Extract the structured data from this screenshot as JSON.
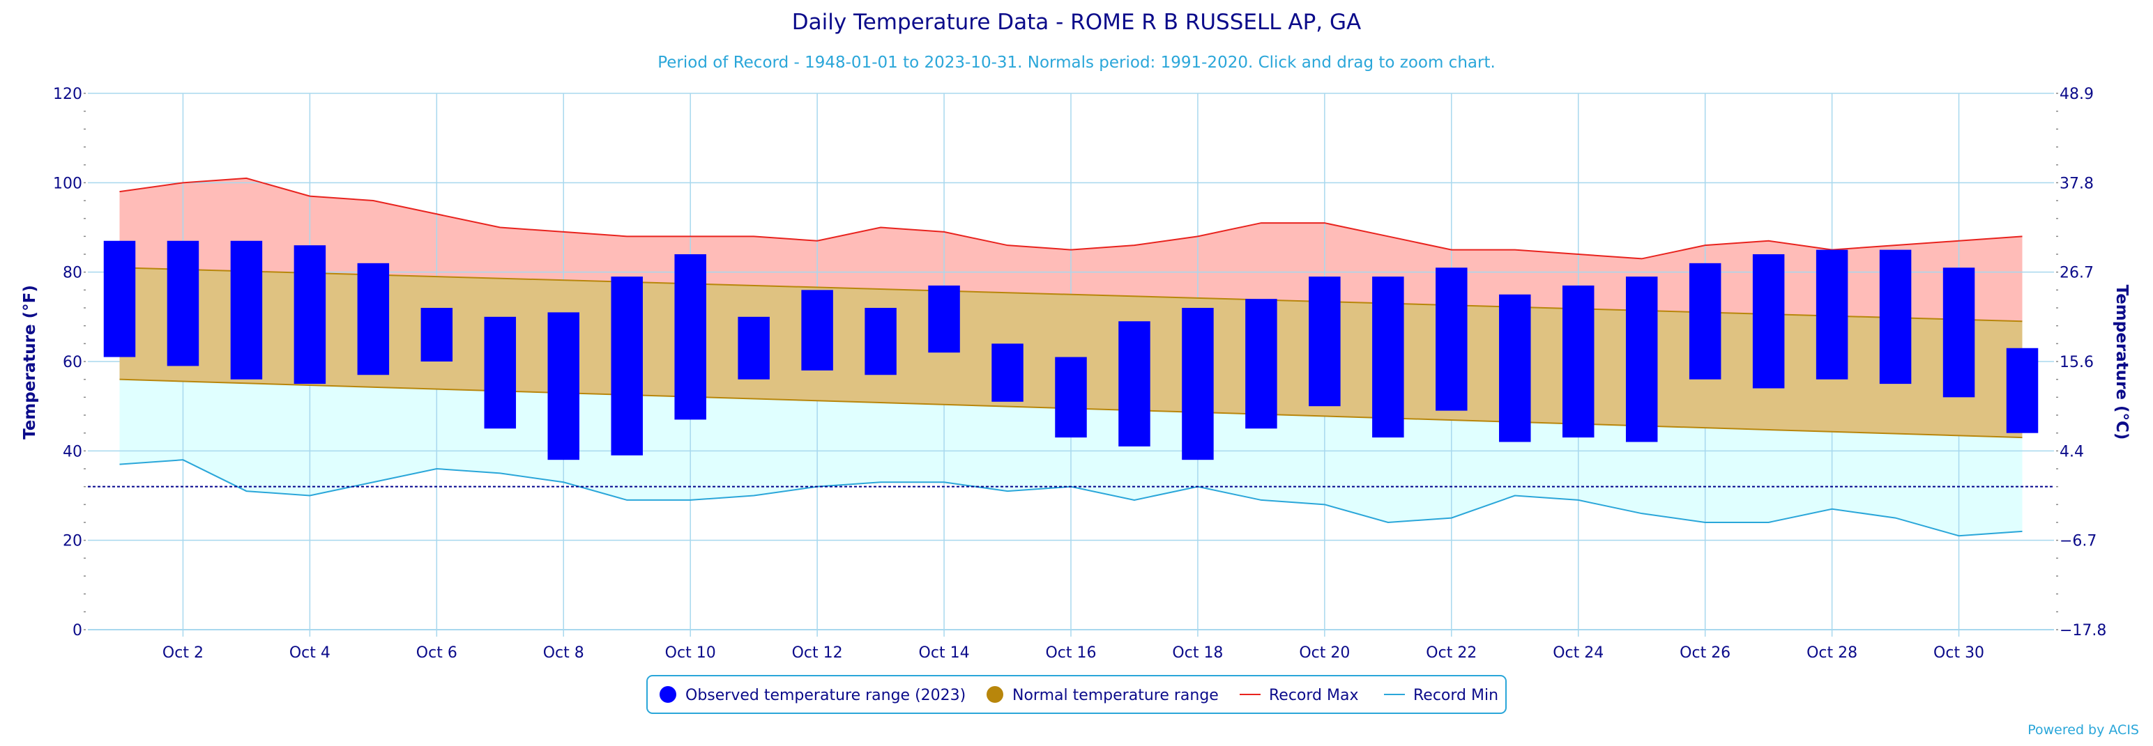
{
  "chart_data": {
    "type": "bar",
    "title": "Daily Temperature Data - ROME R B RUSSELL AP, GA",
    "subtitle": "Period of Record - 1948-01-01 to 2023-10-31. Normals period: 1991-2020. Click and drag to zoom chart.",
    "ylabel": "Temperature (°F)",
    "y2label": "Temperature (°C)",
    "ylim": [
      0,
      120
    ],
    "yticks": [
      "0",
      "20",
      "40",
      "60",
      "80",
      "100",
      "120"
    ],
    "y2ticks": [
      "−17.8",
      "−6.7",
      "4.4",
      "15.6",
      "26.7",
      "37.8",
      "48.9"
    ],
    "x": [
      "Oct 1",
      "Oct 2",
      "Oct 3",
      "Oct 4",
      "Oct 5",
      "Oct 6",
      "Oct 7",
      "Oct 8",
      "Oct 9",
      "Oct 10",
      "Oct 11",
      "Oct 12",
      "Oct 13",
      "Oct 14",
      "Oct 15",
      "Oct 16",
      "Oct 17",
      "Oct 18",
      "Oct 19",
      "Oct 20",
      "Oct 21",
      "Oct 22",
      "Oct 23",
      "Oct 24",
      "Oct 25",
      "Oct 26",
      "Oct 27",
      "Oct 28",
      "Oct 29",
      "Oct 30",
      "Oct 31"
    ],
    "xticks": [
      "Oct 2",
      "Oct 4",
      "Oct 6",
      "Oct 8",
      "Oct 10",
      "Oct 12",
      "Oct 14",
      "Oct 16",
      "Oct 18",
      "Oct 20",
      "Oct 22",
      "Oct 24",
      "Oct 26",
      "Oct 28",
      "Oct 30"
    ],
    "freezing_line": 32,
    "grid": true,
    "legend_position": "bottom-center",
    "series": [
      {
        "name": "Observed temperature range (2023)",
        "color": "#0000ff",
        "low": [
          61,
          59,
          56,
          55,
          57,
          60,
          45,
          38,
          39,
          47,
          56,
          58,
          57,
          62,
          51,
          43,
          41,
          38,
          45,
          50,
          43,
          49,
          42,
          43,
          42,
          56,
          54,
          56,
          55,
          52,
          44
        ],
        "high": [
          87,
          87,
          87,
          86,
          82,
          72,
          70,
          71,
          79,
          84,
          70,
          76,
          72,
          77,
          64,
          61,
          69,
          72,
          74,
          79,
          79,
          81,
          75,
          77,
          79,
          82,
          84,
          85,
          85,
          81,
          63
        ]
      },
      {
        "name": "Normal temperature range",
        "color": "#b8860b",
        "high_start": 81,
        "high_end": 69,
        "low_start": 56,
        "low_end": 43
      },
      {
        "name": "Record Max",
        "color": "#e8231e",
        "values": [
          98,
          100,
          101,
          97,
          96,
          93,
          90,
          89,
          88,
          88,
          88,
          87,
          90,
          89,
          86,
          85,
          86,
          88,
          91,
          91,
          88,
          85,
          85,
          84,
          83,
          86,
          87,
          85,
          86,
          87,
          88
        ]
      },
      {
        "name": "Record Min",
        "color": "#2aa6d9",
        "values": [
          37,
          38,
          31,
          30,
          33,
          36,
          35,
          33,
          29,
          29,
          30,
          32,
          33,
          33,
          31,
          32,
          29,
          32,
          29,
          28,
          24,
          25,
          30,
          29,
          26,
          24,
          24,
          27,
          25,
          21,
          22
        ]
      }
    ],
    "credit": "Powered by ACIS"
  }
}
